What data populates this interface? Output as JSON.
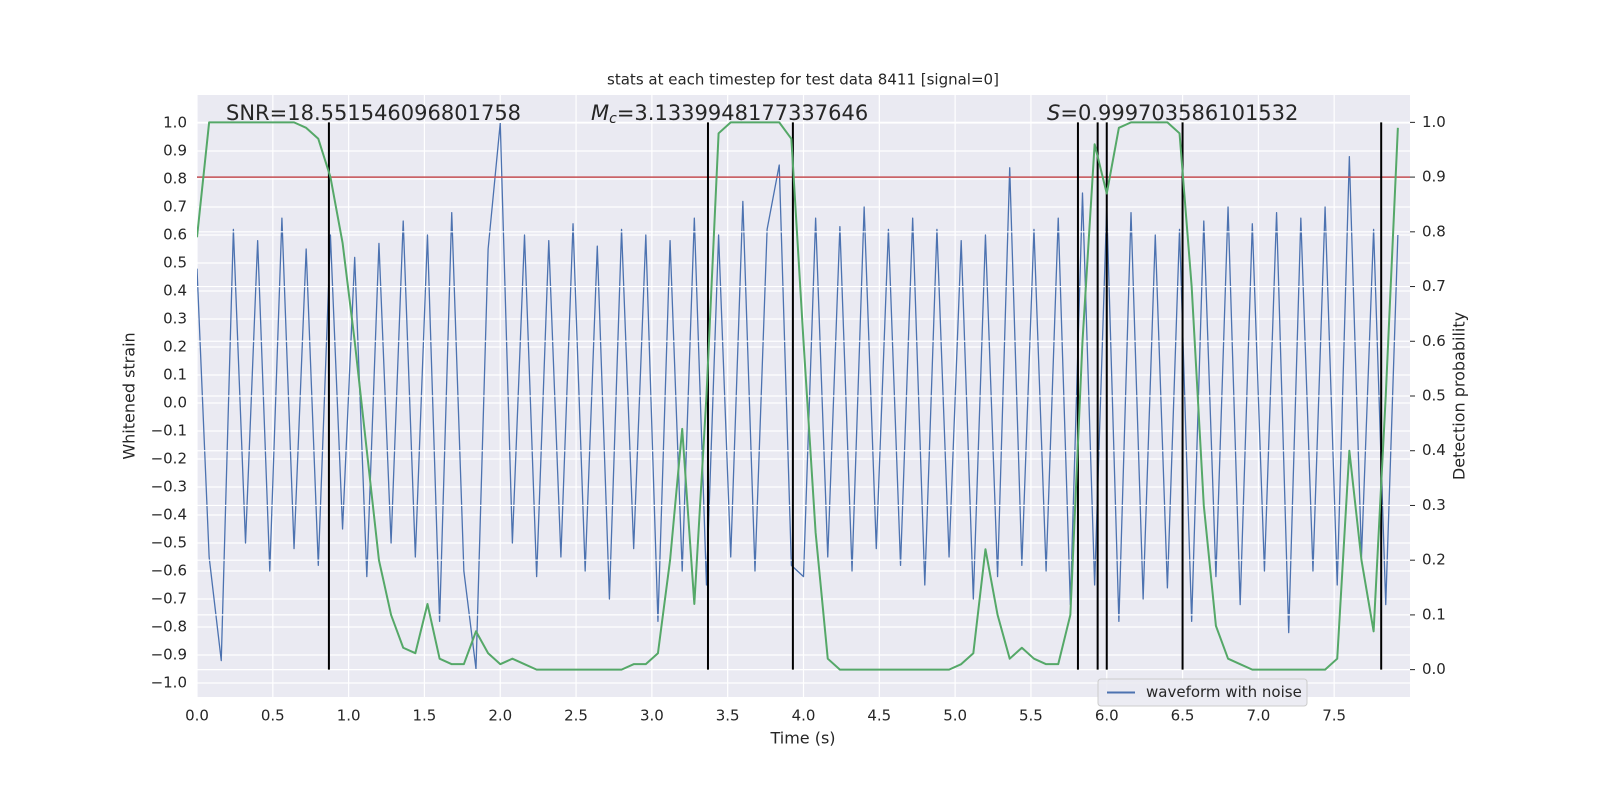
{
  "chart_data": {
    "type": "line",
    "title": "stats at each timestep for test data 8411 [signal=0]",
    "xlabel": "Time (s)",
    "ylabel": "Whitened strain",
    "y2label": "Detection probability",
    "xlim": [
      0,
      8
    ],
    "ylim": [
      -1.05,
      1.1
    ],
    "y2lim": [
      -0.05,
      1.05
    ],
    "xticks": [
      {
        "value": 0,
        "label": "0.0"
      },
      0.5,
      {
        "value": 1,
        "label": "1.0"
      },
      1.5,
      {
        "value": 2,
        "label": "2.0"
      },
      2.5,
      {
        "value": 3,
        "label": "3.0"
      },
      3.5,
      {
        "value": 4,
        "label": "4.0"
      },
      4.5,
      {
        "value": 5,
        "label": "5.0"
      },
      5.5,
      {
        "value": 6,
        "label": "6.0"
      },
      6.5,
      {
        "value": 7,
        "label": "7.0"
      },
      7.5
    ],
    "yticks": [
      {
        "value": -1,
        "label": "−1.0"
      },
      {
        "value": -0.9,
        "label": "−0.9"
      },
      {
        "value": -0.8,
        "label": "−0.8"
      },
      {
        "value": -0.7,
        "label": "−0.7"
      },
      {
        "value": -0.6,
        "label": "−0.6"
      },
      {
        "value": -0.5,
        "label": "−0.5"
      },
      {
        "value": -0.4,
        "label": "−0.4"
      },
      {
        "value": -0.3,
        "label": "−0.3"
      },
      {
        "value": -0.2,
        "label": "−0.2"
      },
      {
        "value": -0.1,
        "label": "−0.1"
      },
      {
        "value": 0,
        "label": "0.0"
      },
      0.1,
      0.2,
      0.3,
      0.4,
      0.5,
      0.6,
      0.7,
      0.8,
      0.9,
      {
        "value": 1,
        "label": "1.0"
      }
    ],
    "y2ticks": [
      {
        "value": 0,
        "label": "0.0"
      },
      0.1,
      0.2,
      0.3,
      0.4,
      0.5,
      0.6,
      0.7,
      0.8,
      0.9,
      {
        "value": 1,
        "label": "1.0"
      }
    ],
    "grid": true,
    "legend": "lower right",
    "series": [
      {
        "name": "waveform with noise",
        "color": "#4c72b0",
        "x": [
          0,
          0.08,
          0.16,
          0.24,
          0.32,
          0.4,
          0.48,
          0.56,
          0.64,
          0.72,
          0.8,
          0.88,
          0.96,
          1.04,
          1.12,
          1.2,
          1.28,
          1.36,
          1.44,
          1.52,
          1.6,
          1.68,
          1.76,
          1.84,
          1.92,
          2,
          2.08,
          2.16,
          2.24,
          2.32,
          2.4,
          2.48,
          2.56,
          2.64,
          2.72,
          2.8,
          2.88,
          2.96,
          3.04,
          3.12,
          3.2,
          3.28,
          3.36,
          3.44,
          3.52,
          3.6,
          3.68,
          3.76,
          3.84,
          3.92,
          4,
          4.08,
          4.16,
          4.24,
          4.32,
          4.4,
          4.48,
          4.56,
          4.64,
          4.72,
          4.8,
          4.88,
          4.96,
          5.04,
          5.12,
          5.2,
          5.28,
          5.36,
          5.44,
          5.52,
          5.6,
          5.68,
          5.76,
          5.84,
          5.92,
          6,
          6.08,
          6.16,
          6.24,
          6.32,
          6.4,
          6.48,
          6.56,
          6.64,
          6.72,
          6.8,
          6.88,
          6.96,
          7.04,
          7.12,
          7.2,
          7.28,
          7.36,
          7.44,
          7.52,
          7.6,
          7.68,
          7.76,
          7.84,
          7.92
        ],
        "values": [
          0.48,
          -0.55,
          -0.92,
          0.62,
          -0.5,
          0.58,
          -0.6,
          0.66,
          -0.52,
          0.55,
          -0.58,
          0.6,
          -0.45,
          0.52,
          -0.62,
          0.57,
          -0.5,
          0.65,
          -0.55,
          0.6,
          -0.78,
          0.68,
          -0.6,
          -0.95,
          0.55,
          1.0,
          -0.5,
          0.6,
          -0.62,
          0.58,
          -0.55,
          0.64,
          -0.6,
          0.56,
          -0.7,
          0.62,
          -0.52,
          0.6,
          -0.78,
          0.58,
          -0.6,
          0.66,
          -0.65,
          0.6,
          -0.55,
          0.72,
          -0.6,
          0.62,
          0.85,
          -0.58,
          -0.62,
          0.66,
          -0.55,
          0.63,
          -0.6,
          0.7,
          -0.52,
          0.62,
          -0.58,
          0.66,
          -0.65,
          0.62,
          -0.55,
          0.58,
          -0.7,
          0.6,
          -0.62,
          0.84,
          -0.58,
          0.62,
          -0.6,
          0.66,
          -0.72,
          0.75,
          -0.65,
          0.7,
          -0.78,
          0.68,
          -0.7,
          0.6,
          -0.66,
          0.62,
          -0.78,
          0.65,
          -0.62,
          0.7,
          -0.72,
          0.64,
          -0.6,
          0.68,
          -0.82,
          0.66,
          -0.6,
          0.7,
          -0.65,
          0.88,
          -0.55,
          0.62,
          -0.72,
          0.6
        ]
      },
      {
        "color": "#55a868",
        "axis": "y2",
        "x": [
          0,
          0.08,
          0.16,
          0.24,
          0.32,
          0.4,
          0.48,
          0.56,
          0.64,
          0.72,
          0.8,
          0.88,
          0.96,
          1.04,
          1.12,
          1.2,
          1.28,
          1.36,
          1.44,
          1.52,
          1.6,
          1.68,
          1.76,
          1.84,
          1.92,
          2,
          2.08,
          2.16,
          2.24,
          2.32,
          2.4,
          2.48,
          2.56,
          2.64,
          2.72,
          2.8,
          2.88,
          2.96,
          3.04,
          3.12,
          3.2,
          3.28,
          3.36,
          3.44,
          3.52,
          3.6,
          3.68,
          3.76,
          3.84,
          3.92,
          4,
          4.08,
          4.16,
          4.24,
          4.32,
          4.4,
          4.48,
          4.56,
          4.64,
          4.72,
          4.8,
          4.88,
          4.96,
          5.04,
          5.12,
          5.2,
          5.28,
          5.36,
          5.44,
          5.52,
          5.6,
          5.68,
          5.76,
          5.84,
          5.92,
          6,
          6.08,
          6.16,
          6.24,
          6.32,
          6.4,
          6.48,
          6.56,
          6.64,
          6.72,
          6.8,
          6.88,
          6.96,
          7.04,
          7.12,
          7.2,
          7.28,
          7.36,
          7.44,
          7.52,
          7.6,
          7.68,
          7.76,
          7.84,
          7.92
        ],
        "values": [
          0.79,
          1.0,
          1.0,
          1.0,
          1.0,
          1.0,
          1.0,
          1.0,
          1.0,
          0.99,
          0.97,
          0.9,
          0.78,
          0.6,
          0.4,
          0.2,
          0.1,
          0.04,
          0.03,
          0.12,
          0.02,
          0.01,
          0.01,
          0.07,
          0.03,
          0.01,
          0.02,
          0.01,
          0.0,
          0.0,
          0.0,
          0.0,
          0.0,
          0.0,
          0.0,
          0.0,
          0.01,
          0.01,
          0.03,
          0.2,
          0.44,
          0.12,
          0.5,
          0.98,
          1.0,
          1.0,
          1.0,
          1.0,
          1.0,
          0.97,
          0.6,
          0.25,
          0.02,
          0.0,
          0.0,
          0.0,
          0.0,
          0.0,
          0.0,
          0.0,
          0.0,
          0.0,
          0.0,
          0.01,
          0.03,
          0.22,
          0.1,
          0.02,
          0.04,
          0.02,
          0.01,
          0.01,
          0.1,
          0.6,
          0.96,
          0.87,
          0.99,
          1.0,
          1.0,
          1.0,
          1.0,
          0.98,
          0.7,
          0.3,
          0.08,
          0.02,
          0.01,
          0.0,
          0.0,
          0.0,
          0.0,
          0.0,
          0.0,
          0.0,
          0.02,
          0.4,
          0.2,
          0.07,
          0.5,
          0.99
        ]
      }
    ],
    "threshold": {
      "value": 0.9,
      "axis": "y2",
      "color": "#c44e52"
    },
    "vlines": {
      "x": [
        0.87,
        3.37,
        3.93,
        5.81,
        5.94,
        6.0,
        6.5,
        7.81
      ],
      "ymin": 0,
      "ymax": 1,
      "axis": "y2",
      "color": "#000000"
    },
    "annotations": [
      {
        "text": "SNR=18.551546096801758"
      },
      {
        "symbol": "M",
        "sub": "c",
        "text": "=3.1339948177337646"
      },
      {
        "symbol": "S",
        "text": "=0.999703586101532"
      }
    ]
  }
}
